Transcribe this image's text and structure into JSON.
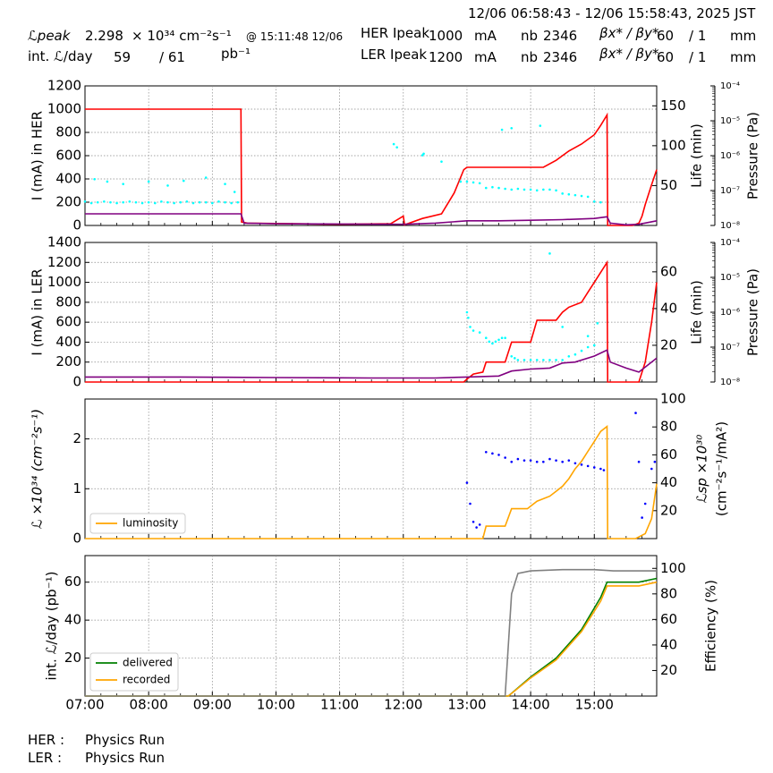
{
  "header": {
    "range": "12/06 06:58:43 - 12/06 15:58:43, 2025 JST",
    "row1": {
      "lum_label": "ℒpeak",
      "lum_value": "2.298",
      "lum_unit": "× 10³⁴ cm⁻²s⁻¹",
      "lum_time": "@ 15:11:48 12/06",
      "her_label": "HER Ipeak",
      "her_value": "1000",
      "her_unit": "mA",
      "nb_label": "nb",
      "nb_value": "2346",
      "beta_label": "βx* / βy*",
      "beta_x": "60",
      "beta_y": "/ 1",
      "beta_unit": "mm"
    },
    "row2": {
      "int_label": "int. ℒ/day",
      "int_value": "59",
      "int_total": "/ 61",
      "int_unit": "pb⁻¹",
      "ler_label": "LER Ipeak",
      "ler_value": "1200",
      "ler_unit": "mA",
      "nb_label": "nb",
      "nb_value": "2346",
      "beta_label": "βx* / βy*",
      "beta_x": "60",
      "beta_y": "/ 1",
      "beta_unit": "mm"
    }
  },
  "footer": {
    "her_label": "HER :",
    "her_status": "Physics Run",
    "ler_label": "LER :",
    "ler_status": "Physics Run"
  },
  "colors": {
    "current": "#ff0000",
    "life": "#00ffff",
    "pressure": "#800080",
    "luminosity": "#ffa500",
    "specific": "#0000ff",
    "delivered": "#008000",
    "recorded": "#ffa500",
    "efficiency": "#808080"
  },
  "chart_data": [
    {
      "type": "line",
      "id": "her",
      "ylabel": "I (mA) in HER",
      "ylim": [
        0,
        1200
      ],
      "yticks": [
        0,
        200,
        400,
        600,
        800,
        1000,
        1200
      ],
      "y2label": "Life (min)",
      "y2ticks": [
        50,
        100,
        150
      ],
      "y3label": "Pressure (Pa)",
      "y3ticks": [
        "10⁻⁸",
        "10⁻⁷",
        "10⁻⁶",
        "10⁻⁵",
        "10⁻⁴"
      ],
      "grid": true,
      "series": [
        {
          "role": "current",
          "x": [
            7.0,
            9.45,
            9.46,
            9.55,
            11.0,
            11.8,
            12.0,
            12.02,
            12.3,
            12.6,
            12.8,
            12.95,
            13.0,
            13.8,
            14.0,
            14.2,
            14.4,
            14.6,
            14.8,
            15.0,
            15.1,
            15.2,
            15.21,
            15.6,
            15.7,
            15.75,
            15.8,
            15.9,
            15.98
          ],
          "y": [
            1000,
            1000,
            30,
            20,
            10,
            15,
            80,
            5,
            60,
            100,
            280,
            480,
            500,
            500,
            500,
            500,
            560,
            640,
            700,
            780,
            860,
            950,
            0,
            0,
            20,
            80,
            180,
            350,
            480
          ]
        },
        {
          "role": "pressure",
          "x": [
            7.0,
            9.45,
            9.5,
            10.0,
            12.0,
            12.5,
            13.0,
            13.5,
            14.0,
            14.5,
            15.0,
            15.2,
            15.25,
            15.5,
            15.7,
            15.98
          ],
          "y": [
            100,
            100,
            20,
            15,
            10,
            20,
            40,
            40,
            45,
            50,
            60,
            75,
            20,
            5,
            10,
            40
          ]
        },
        {
          "role": "life",
          "x": [
            7.0,
            7.1,
            7.2,
            7.3,
            7.4,
            7.5,
            7.6,
            7.7,
            7.8,
            7.9,
            8.0,
            8.1,
            8.2,
            8.3,
            8.4,
            8.5,
            8.6,
            8.7,
            8.8,
            8.9,
            9.0,
            9.1,
            9.2,
            9.3,
            9.4,
            7.15,
            7.35,
            7.6,
            8.0,
            8.3,
            8.55,
            8.9,
            9.2,
            9.35,
            11.85,
            11.9,
            12.3,
            12.32,
            12.6,
            12.9,
            13.0,
            13.1,
            13.2,
            13.3,
            13.4,
            13.5,
            13.6,
            13.7,
            13.8,
            13.9,
            14.0,
            14.1,
            14.2,
            14.3,
            14.4,
            14.5,
            14.6,
            14.7,
            14.8,
            14.9,
            15.0,
            15.1,
            13.55,
            13.7,
            14.15
          ],
          "y": [
            30,
            28,
            29,
            30,
            29,
            28,
            29,
            30,
            29,
            28,
            29,
            28,
            30,
            29,
            28,
            29,
            30,
            28,
            29,
            29,
            28,
            30,
            29,
            28,
            29,
            58,
            55,
            52,
            55,
            50,
            56,
            60,
            52,
            42,
            102,
            98,
            88,
            90,
            80,
            55,
            55,
            54,
            53,
            47,
            48,
            47,
            46,
            45,
            46,
            45,
            45,
            44,
            45,
            45,
            44,
            40,
            39,
            38,
            37,
            36,
            30,
            29,
            120,
            122,
            125
          ]
        }
      ]
    },
    {
      "type": "line",
      "id": "ler",
      "ylabel": "I (mA) in LER",
      "ylim": [
        0,
        1400
      ],
      "yticks": [
        0,
        200,
        400,
        600,
        800,
        1000,
        1200,
        1400
      ],
      "y2label": "Life (min)",
      "y2ticks": [
        20,
        40,
        60
      ],
      "y3label": "Pressure (Pa)",
      "y3ticks": [
        "10⁻⁸",
        "10⁻⁷",
        "10⁻⁶",
        "10⁻⁵",
        "10⁻⁴"
      ],
      "grid": true,
      "series": [
        {
          "role": "current",
          "x": [
            7.0,
            12.95,
            13.0,
            13.1,
            13.25,
            13.3,
            13.6,
            13.7,
            14.0,
            14.1,
            14.4,
            14.5,
            14.6,
            14.8,
            14.9,
            15.0,
            15.1,
            15.2,
            15.21,
            15.7,
            15.8,
            15.9,
            15.98
          ],
          "y": [
            0,
            0,
            30,
            80,
            100,
            200,
            200,
            400,
            400,
            620,
            620,
            700,
            750,
            800,
            900,
            1000,
            1100,
            1200,
            0,
            0,
            200,
            600,
            1000
          ]
        },
        {
          "role": "pressure",
          "x": [
            7.0,
            8.5,
            10.0,
            11.5,
            12.0,
            12.5,
            13.0,
            13.5,
            13.7,
            14.0,
            14.3,
            14.5,
            14.7,
            15.0,
            15.2,
            15.25,
            15.5,
            15.7,
            15.98
          ],
          "y": [
            50,
            50,
            45,
            40,
            40,
            40,
            50,
            60,
            110,
            130,
            140,
            190,
            200,
            260,
            320,
            200,
            140,
            100,
            240
          ]
        },
        {
          "role": "life",
          "x": [
            13.0,
            13.02,
            13.05,
            13.1,
            13.2,
            13.3,
            13.35,
            13.4,
            13.45,
            13.5,
            13.55,
            13.6,
            13.7,
            13.75,
            13.8,
            13.9,
            14.0,
            14.1,
            14.2,
            14.3,
            14.4,
            14.5,
            14.6,
            14.7,
            14.8,
            14.9,
            15.0,
            14.3,
            14.5,
            14.9,
            15.05
          ],
          "y": [
            38,
            35,
            30,
            28,
            27,
            24,
            22,
            21,
            22,
            23,
            24,
            24,
            14,
            13,
            12,
            12,
            12,
            12,
            12,
            12,
            12,
            12,
            14,
            15,
            17,
            19,
            20,
            70,
            30,
            25,
            32
          ]
        }
      ]
    },
    {
      "type": "line",
      "id": "lum",
      "ylabel": "ℒ ×10³⁴ (cm⁻²s⁻¹)",
      "ylim": [
        0,
        2.8
      ],
      "yticks": [
        0,
        1,
        2
      ],
      "y2label": "ℒsp ×10³⁰ (cm⁻²s⁻¹/mA²)",
      "y2ticks": [
        20,
        40,
        60,
        80,
        100
      ],
      "legend": [
        "luminosity"
      ],
      "legend_position": "lower-left",
      "grid": true,
      "series": [
        {
          "role": "luminosity",
          "name": "luminosity",
          "x": [
            7.0,
            13.25,
            13.3,
            13.6,
            13.7,
            13.95,
            14.0,
            14.1,
            14.3,
            14.4,
            14.5,
            14.6,
            14.7,
            14.8,
            14.9,
            15.0,
            15.1,
            15.2,
            15.21,
            15.65,
            15.8,
            15.9,
            15.98
          ],
          "y": [
            0,
            0,
            0.25,
            0.25,
            0.6,
            0.6,
            0.65,
            0.75,
            0.85,
            0.95,
            1.05,
            1.2,
            1.4,
            1.55,
            1.75,
            1.95,
            2.15,
            2.25,
            0,
            0,
            0.1,
            0.4,
            1.1
          ]
        },
        {
          "role": "specific",
          "x": [
            13.0,
            13.05,
            13.1,
            13.15,
            13.2,
            13.3,
            13.4,
            13.5,
            13.6,
            13.7,
            13.8,
            13.9,
            14.0,
            14.1,
            14.2,
            14.3,
            14.4,
            14.5,
            14.6,
            14.7,
            14.8,
            14.9,
            15.0,
            15.1,
            15.15,
            15.65,
            15.7,
            15.75,
            15.8,
            15.9,
            15.95
          ],
          "y": [
            40,
            25,
            12,
            8,
            10,
            62,
            61,
            60,
            58,
            55,
            57,
            56,
            56,
            55,
            55,
            57,
            56,
            55,
            56,
            54,
            53,
            52,
            51,
            50,
            49,
            90,
            55,
            15,
            25,
            50,
            55
          ]
        }
      ]
    },
    {
      "type": "line",
      "id": "int",
      "ylabel": "int. ℒ/day (pb⁻¹)",
      "ylim": [
        0,
        74
      ],
      "yticks": [
        20,
        40,
        60
      ],
      "y2label": "Efficiency (%)",
      "y2ticks": [
        20,
        40,
        60,
        80,
        100
      ],
      "xticks": [
        "07:00",
        "08:00",
        "09:00",
        "10:00",
        "11:00",
        "12:00",
        "13:00",
        "14:00",
        "15:00"
      ],
      "legend": [
        "delivered",
        "recorded"
      ],
      "legend_position": "lower-left",
      "grid": true,
      "series": [
        {
          "role": "delivered",
          "name": "delivered",
          "x": [
            7.0,
            13.65,
            14.0,
            14.4,
            14.8,
            15.1,
            15.2,
            15.7,
            15.98
          ],
          "y": [
            0,
            0,
            10,
            20,
            35,
            52,
            60,
            60,
            62
          ]
        },
        {
          "role": "recorded",
          "name": "recorded",
          "x": [
            7.0,
            13.65,
            14.0,
            14.4,
            14.8,
            15.1,
            15.2,
            15.7,
            15.98
          ],
          "y": [
            0,
            0,
            9.5,
            19,
            34,
            50,
            58,
            58,
            60
          ]
        },
        {
          "role": "efficiency",
          "x": [
            7.0,
            13.6,
            13.7,
            13.8,
            14.0,
            14.5,
            15.0,
            15.3,
            15.98
          ],
          "y": [
            0,
            0,
            80,
            96,
            98,
            99,
            99,
            98,
            98
          ]
        }
      ]
    }
  ]
}
